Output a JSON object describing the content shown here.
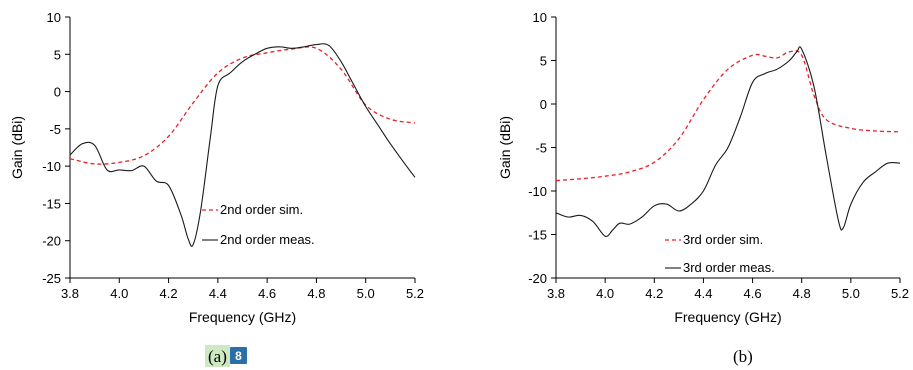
{
  "chart_data": [
    {
      "type": "line",
      "title": "",
      "xlabel": "Frequency (GHz)",
      "ylabel": "Gain (dBi)",
      "xlim": [
        3.8,
        5.2
      ],
      "ylim": [
        -25,
        10
      ],
      "xticks": [
        "3.8",
        "4.0",
        "4.2",
        "4.4",
        "4.6",
        "4.8",
        "5.0",
        "5.2"
      ],
      "yticks": [
        "-25",
        "-20",
        "-15",
        "-10",
        "-5",
        "0",
        "5",
        "10"
      ],
      "grid": false,
      "legend_position": "bottom-right",
      "panel_label": "(a)",
      "panel_badge": "8",
      "series": [
        {
          "name": "2nd order sim.",
          "color": "#e8202a",
          "style": "dashed",
          "x": [
            3.8,
            3.9,
            4.0,
            4.1,
            4.2,
            4.3,
            4.4,
            4.5,
            4.6,
            4.7,
            4.8,
            4.9,
            5.0,
            5.1,
            5.2
          ],
          "y": [
            -9.0,
            -9.7,
            -9.5,
            -8.6,
            -6.0,
            -1.5,
            2.5,
            4.5,
            5.2,
            5.7,
            5.8,
            3.0,
            -1.8,
            -3.7,
            -4.2
          ]
        },
        {
          "name": "2nd order meas.",
          "color": "#1a1a1a",
          "style": "solid",
          "x": [
            3.8,
            3.85,
            3.9,
            3.95,
            4.0,
            4.05,
            4.1,
            4.15,
            4.2,
            4.25,
            4.28,
            4.3,
            4.33,
            4.37,
            4.4,
            4.45,
            4.5,
            4.55,
            4.6,
            4.65,
            4.7,
            4.75,
            4.8,
            4.85,
            4.9,
            4.95,
            5.0,
            5.05,
            5.1,
            5.15,
            5.2
          ],
          "y": [
            -8.5,
            -7.0,
            -7.2,
            -10.5,
            -10.5,
            -10.6,
            -10.0,
            -12.0,
            -12.6,
            -16.5,
            -19.8,
            -20.5,
            -16.0,
            -6.0,
            0.8,
            2.5,
            4.0,
            5.0,
            5.8,
            6.0,
            5.8,
            6.0,
            6.3,
            6.2,
            4.0,
            1.0,
            -2.0,
            -4.5,
            -7.0,
            -9.3,
            -11.5
          ]
        }
      ]
    },
    {
      "type": "line",
      "title": "",
      "xlabel": "Frequency (GHz)",
      "ylabel": "Gain (dBi)",
      "xlim": [
        3.8,
        5.2
      ],
      "ylim": [
        -20,
        10
      ],
      "xticks": [
        "3.8",
        "4.0",
        "4.2",
        "4.4",
        "4.6",
        "4.8",
        "5.0",
        "5.2"
      ],
      "yticks": [
        "-20",
        "-15",
        "-10",
        "-5",
        "0",
        "5",
        "10"
      ],
      "grid": false,
      "legend_position": "bottom-right",
      "panel_label": "(b)",
      "series": [
        {
          "name": "3rd order sim.",
          "color": "#e8202a",
          "style": "dashed",
          "x": [
            3.8,
            3.9,
            4.0,
            4.1,
            4.2,
            4.3,
            4.4,
            4.5,
            4.6,
            4.65,
            4.7,
            4.75,
            4.8,
            4.85,
            4.9,
            5.0,
            5.1,
            5.2
          ],
          "y": [
            -8.8,
            -8.6,
            -8.3,
            -7.8,
            -6.7,
            -4.0,
            0.5,
            4.0,
            5.6,
            5.5,
            5.3,
            6.0,
            5.6,
            1.0,
            -1.8,
            -2.8,
            -3.1,
            -3.2
          ]
        },
        {
          "name": "3rd order meas.",
          "color": "#1a1a1a",
          "style": "solid",
          "x": [
            3.8,
            3.85,
            3.9,
            3.95,
            4.0,
            4.03,
            4.06,
            4.1,
            4.15,
            4.2,
            4.25,
            4.3,
            4.35,
            4.4,
            4.45,
            4.5,
            4.55,
            4.6,
            4.65,
            4.7,
            4.75,
            4.78,
            4.8,
            4.85,
            4.9,
            4.95,
            4.97,
            5.0,
            5.05,
            5.1,
            5.15,
            5.2
          ],
          "y": [
            -12.5,
            -13.0,
            -12.8,
            -13.5,
            -15.2,
            -14.5,
            -13.7,
            -13.8,
            -13.0,
            -11.7,
            -11.5,
            -12.3,
            -11.5,
            -10.0,
            -7.0,
            -5.0,
            -1.5,
            2.5,
            3.5,
            4.0,
            5.0,
            6.0,
            6.3,
            2.0,
            -6.0,
            -13.5,
            -14.2,
            -11.5,
            -9.0,
            -7.8,
            -6.8,
            -6.8
          ]
        }
      ]
    }
  ]
}
